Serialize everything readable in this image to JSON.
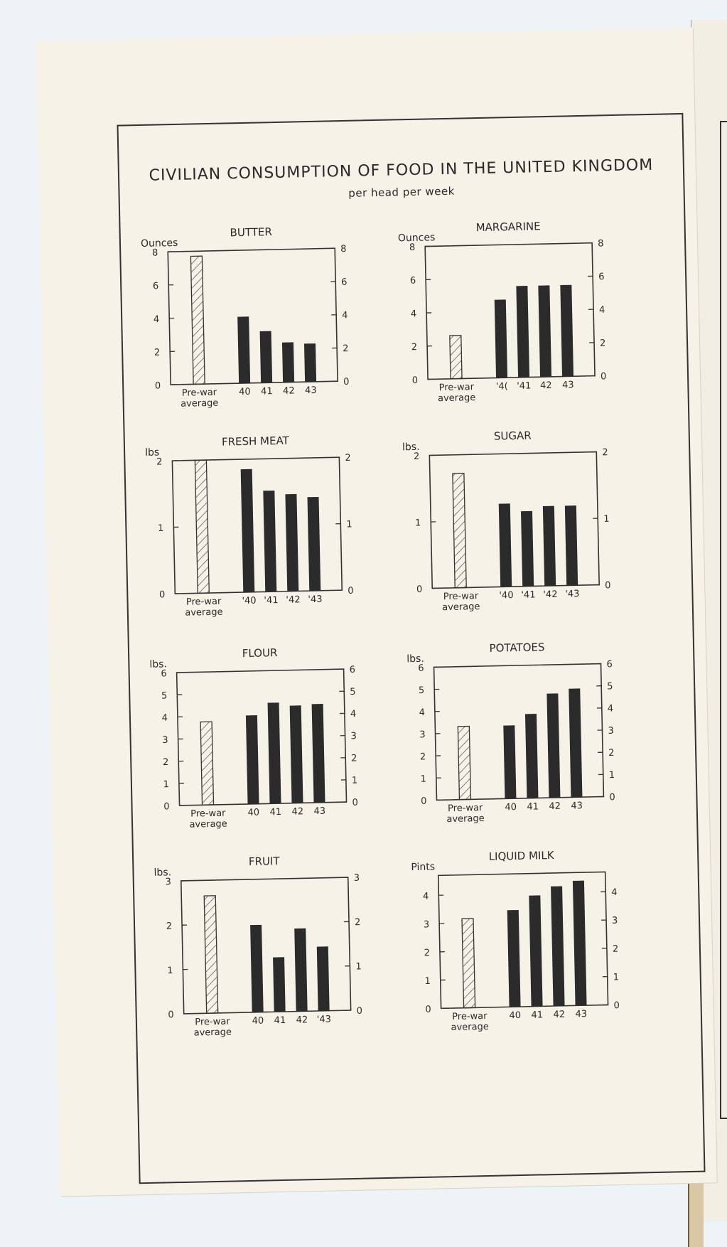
{
  "title": "CIVILIAN CONSUMPTION OF FOOD IN THE UNITED KINGDOM",
  "subtitle": "per head per week",
  "chart_data": [
    {
      "type": "bar",
      "title": "BUTTER",
      "unit": "Ounces",
      "ylim": [
        0,
        8
      ],
      "left_ticks": [
        "0",
        "2",
        "4",
        "6",
        "8"
      ],
      "right_ticks": [
        "0",
        "2",
        "4",
        "6",
        "8"
      ],
      "prewar_label": [
        "Pre-war",
        "average"
      ],
      "prewar": 7.7,
      "categories": [
        "40",
        "41",
        "42",
        "43"
      ],
      "values": [
        4.0,
        3.1,
        2.4,
        2.3
      ]
    },
    {
      "type": "bar",
      "title": "MARGARINE",
      "unit": "Ounces",
      "ylim": [
        0,
        8
      ],
      "left_ticks": [
        "0",
        "2",
        "4",
        "6",
        "8"
      ],
      "right_ticks": [
        "0",
        "2",
        "4",
        "6",
        "8"
      ],
      "prewar_label": [
        "Pre-war",
        "average"
      ],
      "prewar": 2.6,
      "categories": [
        "'4(",
        "'41",
        "42",
        "43"
      ],
      "values": [
        4.7,
        5.5,
        5.5,
        5.5
      ]
    },
    {
      "type": "bar",
      "title": "FRESH MEAT",
      "unit": "lbs",
      "ylim": [
        0,
        2
      ],
      "left_ticks": [
        "0",
        "1",
        "2"
      ],
      "right_ticks": [
        "0",
        "1",
        "2"
      ],
      "prewar_label": [
        "Pre-war",
        "average"
      ],
      "prewar": 2.0,
      "categories": [
        "'40",
        "'41",
        "'42",
        "'43"
      ],
      "values": [
        1.85,
        1.52,
        1.46,
        1.41
      ]
    },
    {
      "type": "bar",
      "title": "SUGAR",
      "unit": "lbs.",
      "ylim": [
        0,
        2
      ],
      "left_ticks": [
        "0",
        "1",
        "2"
      ],
      "right_ticks": [
        "0",
        "1",
        "2"
      ],
      "prewar_label": [
        "Pre-war",
        "average"
      ],
      "prewar": 1.72,
      "categories": [
        "'40",
        "'41",
        "'42",
        "'43"
      ],
      "values": [
        1.25,
        1.13,
        1.2,
        1.2
      ]
    },
    {
      "type": "bar",
      "title": "FLOUR",
      "unit": "lbs.",
      "ylim": [
        0,
        6
      ],
      "left_ticks": [
        "0",
        "1",
        "2",
        "3",
        "4",
        "5",
        "6"
      ],
      "right_ticks": [
        "0",
        "1",
        "2",
        "3",
        "4",
        "5",
        "6"
      ],
      "prewar_label": [
        "Pre-war",
        "average"
      ],
      "prewar": 3.75,
      "categories": [
        "40",
        "41",
        "42",
        "43"
      ],
      "values": [
        4.0,
        4.55,
        4.4,
        4.45
      ]
    },
    {
      "type": "bar",
      "title": "POTATOES",
      "unit": "lbs.",
      "ylim": [
        0,
        6
      ],
      "left_ticks": [
        "0",
        "1",
        "2",
        "3",
        "4",
        "5",
        "6"
      ],
      "right_ticks": [
        "0",
        "1",
        "2",
        "3",
        "4",
        "5",
        "6"
      ],
      "prewar_label": [
        "Pre-war",
        "average"
      ],
      "prewar": 3.3,
      "categories": [
        "40",
        "41",
        "42",
        "43"
      ],
      "values": [
        3.3,
        3.8,
        4.7,
        4.9
      ]
    },
    {
      "type": "bar",
      "title": "FRUIT",
      "unit": "lbs.",
      "ylim": [
        0,
        3
      ],
      "left_ticks": [
        "0",
        "1",
        "2",
        "3"
      ],
      "right_ticks": [
        "0",
        "1",
        "2",
        "3"
      ],
      "prewar_label": [
        "Pre-war",
        "average"
      ],
      "prewar": 2.65,
      "categories": [
        "40",
        "41",
        "42",
        "'43"
      ],
      "values": [
        1.97,
        1.23,
        1.87,
        1.45
      ]
    },
    {
      "type": "bar",
      "title": "LIQUID MILK",
      "unit": "Pints",
      "ylim": [
        0,
        4.7
      ],
      "left_ticks": [
        "0",
        "1",
        "2",
        "3",
        "4"
      ],
      "right_ticks": [
        "0",
        "1",
        "2",
        "3",
        "4"
      ],
      "prewar_label": [
        "Pre-war",
        "average"
      ],
      "prewar": 3.15,
      "categories": [
        "40",
        "41",
        "42",
        "43"
      ],
      "values": [
        3.42,
        3.92,
        4.23,
        4.41
      ]
    }
  ]
}
